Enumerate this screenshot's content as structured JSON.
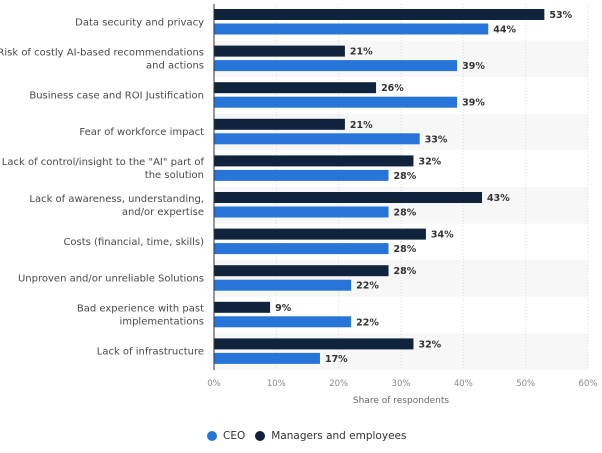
{
  "chart_data": {
    "type": "bar",
    "orientation": "horizontal",
    "categories": [
      [
        "Data security and privacy"
      ],
      [
        "Risk of costly AI-based recommendations",
        "and actions"
      ],
      [
        "Business case and ROI Justification"
      ],
      [
        "Fear of workforce impact"
      ],
      [
        "Lack of control/insight to the \"AI\" part of",
        "the solution"
      ],
      [
        "Lack of awareness, understanding,",
        "and/or expertise"
      ],
      [
        "Costs (financial, time, skills)"
      ],
      [
        "Unproven and/or unreliable Solutions"
      ],
      [
        "Bad experience with past",
        "implementations"
      ],
      [
        "Lack of infrastructure"
      ]
    ],
    "series": [
      {
        "name": "Managers and employees",
        "color": "#10233d",
        "values": [
          53,
          21,
          26,
          21,
          32,
          43,
          34,
          28,
          9,
          32
        ]
      },
      {
        "name": "CEO",
        "color": "#2875d9",
        "values": [
          44,
          39,
          39,
          33,
          28,
          28,
          28,
          22,
          22,
          17
        ]
      }
    ],
    "value_suffix": "%",
    "xlabel": "Share of respondents",
    "ylabel": "",
    "xlim": [
      0,
      60
    ],
    "xticks": [
      0,
      10,
      20,
      30,
      40,
      50,
      60
    ],
    "xtick_labels": [
      "0%",
      "10%",
      "20%",
      "30%",
      "40%",
      "50%",
      "60%"
    ],
    "grid": true,
    "legend_position": "bottom-left",
    "legend": [
      {
        "name": "CEO",
        "color": "#2875d9"
      },
      {
        "name": "Managers and employees",
        "color": "#10233d"
      }
    ]
  }
}
